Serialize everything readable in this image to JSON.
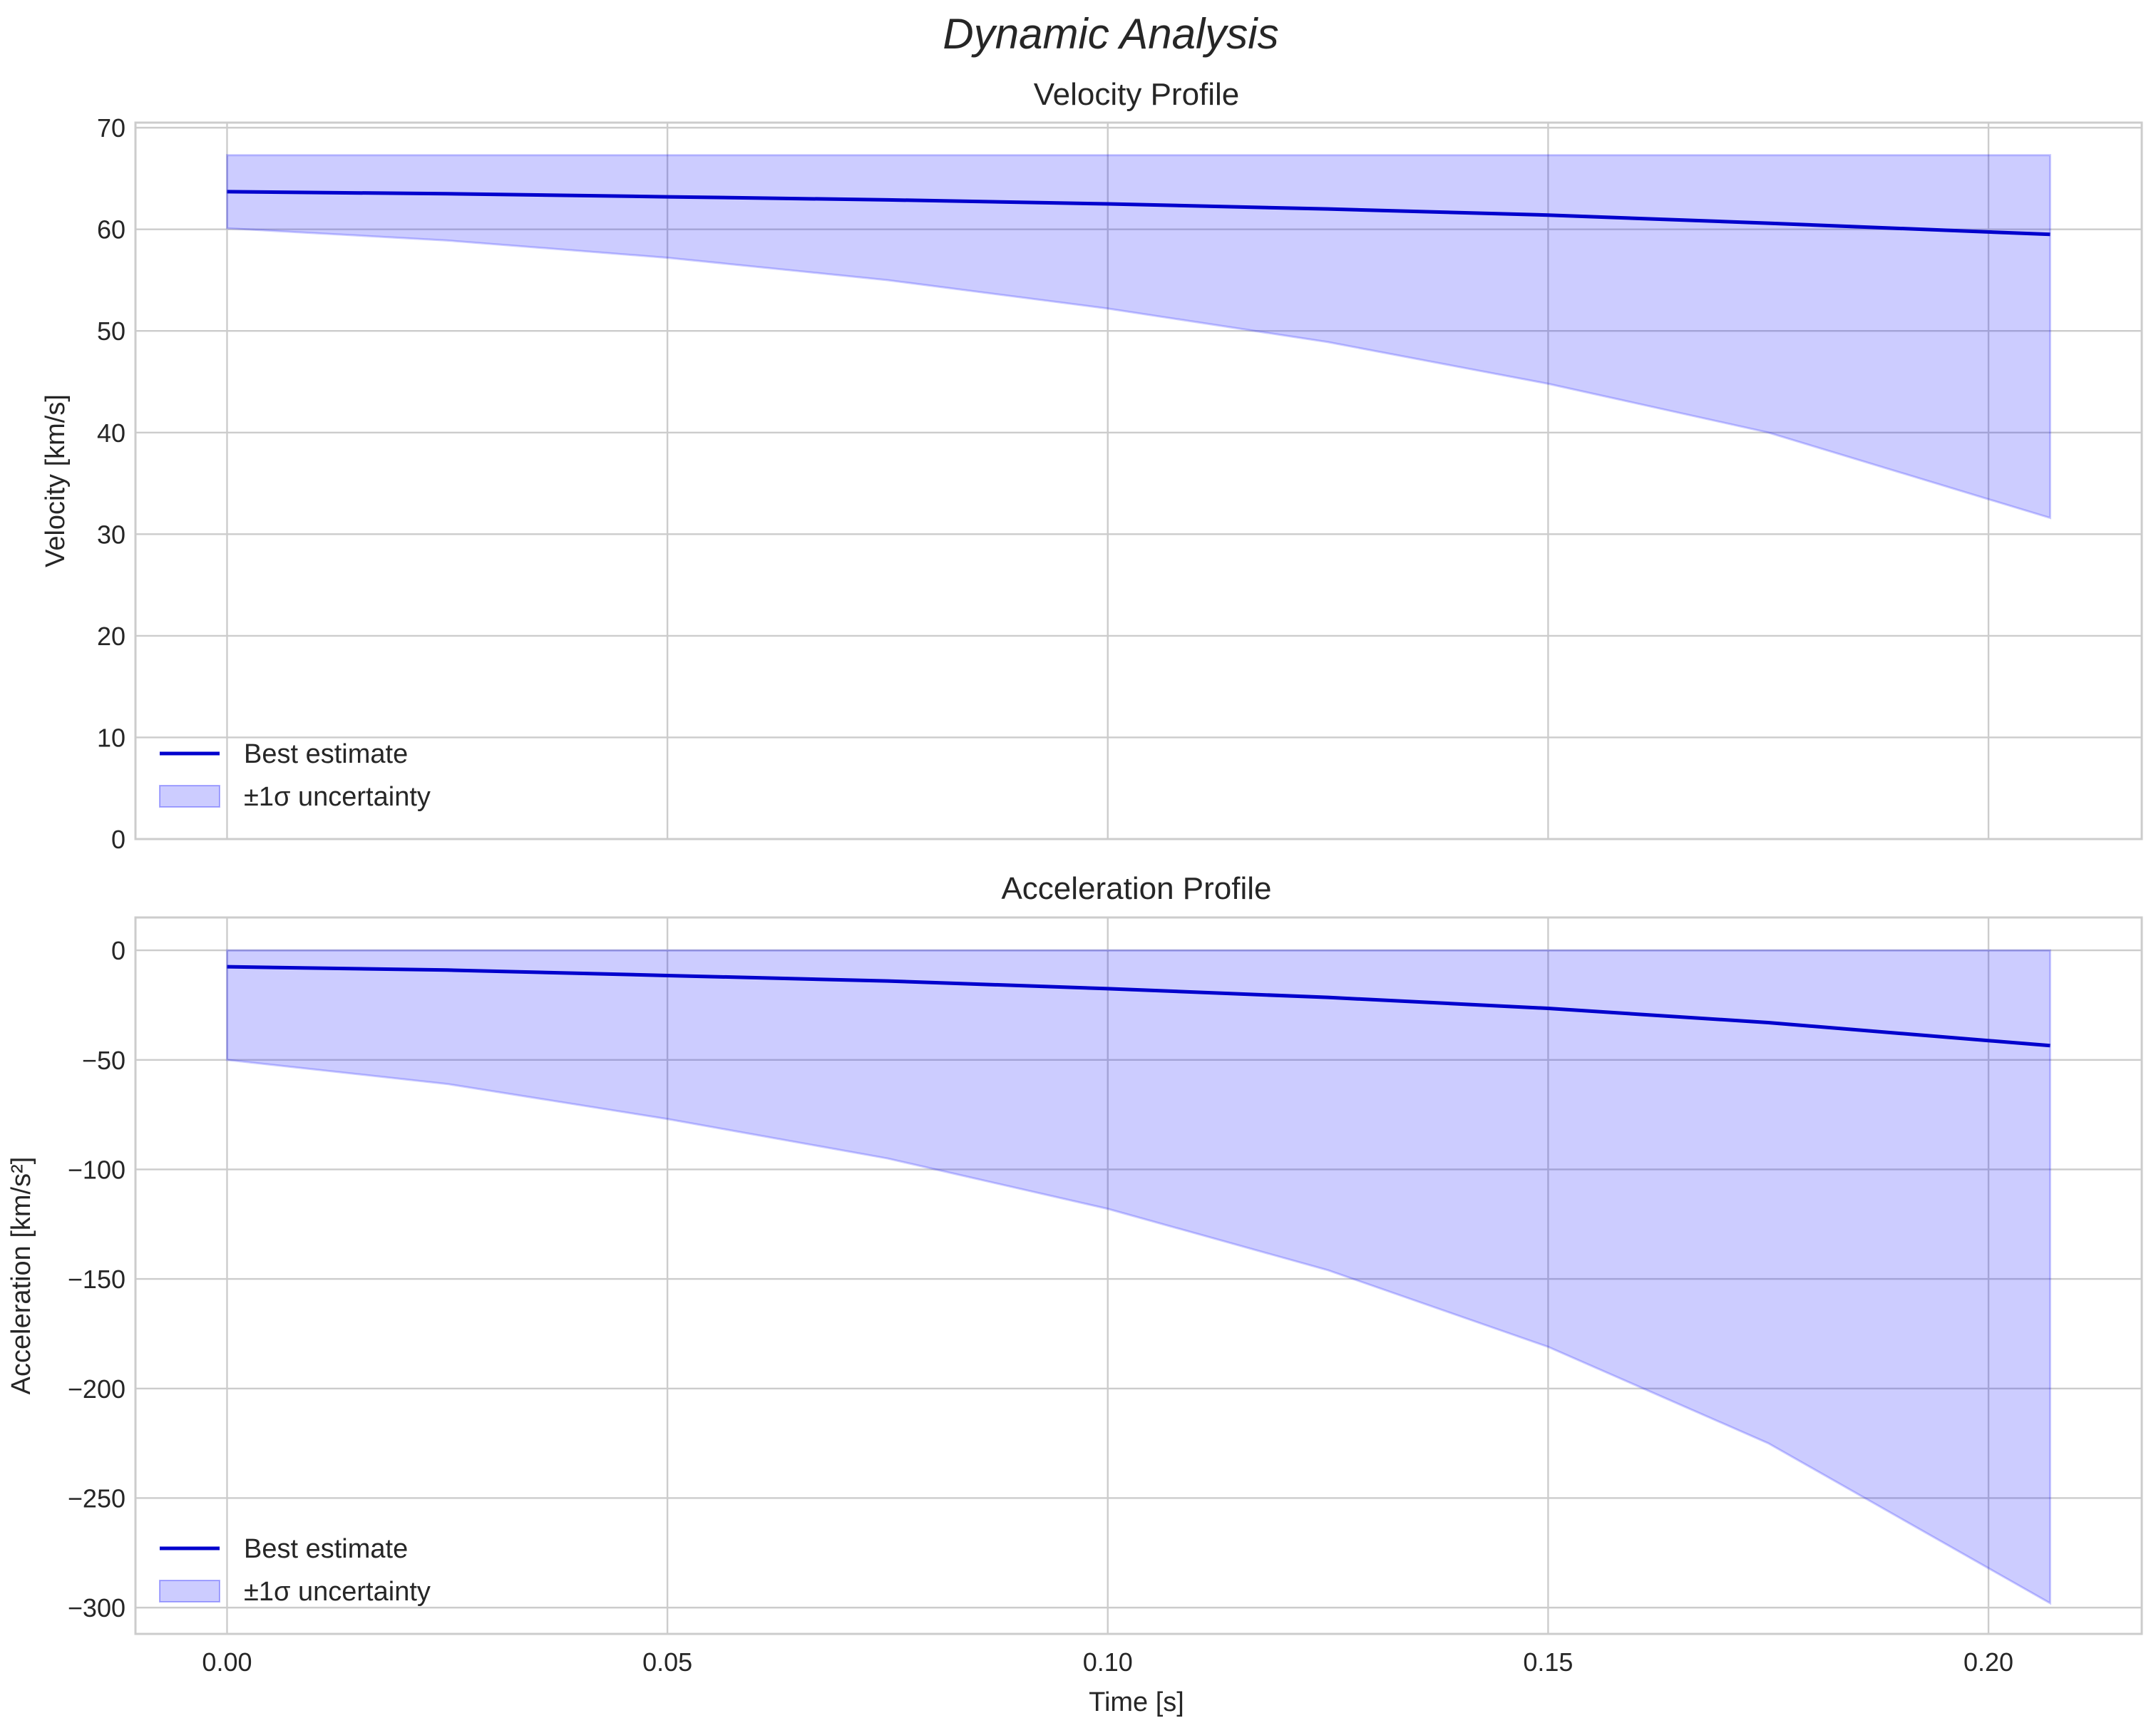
{
  "figure": {
    "suptitle": "Dynamic Analysis"
  },
  "chart_data": [
    {
      "type": "line",
      "title": "Velocity Profile",
      "xlabel": "",
      "ylabel": "Velocity [km/s]",
      "xlim": [
        -0.0104,
        0.2174
      ],
      "ylim": [
        0,
        70.5
      ],
      "xticks": [
        0.0,
        0.05,
        0.1,
        0.15,
        0.2
      ],
      "xtick_labels": [
        "0.00",
        "0.05",
        "0.10",
        "0.15",
        "0.20"
      ],
      "show_xtick_labels": false,
      "yticks": [
        0,
        10,
        20,
        30,
        40,
        50,
        60,
        70
      ],
      "ytick_labels": [
        "0",
        "10",
        "20",
        "30",
        "40",
        "50",
        "60",
        "70"
      ],
      "grid": true,
      "legend_location": "lower-left",
      "legend": [
        "Best estimate",
        "±1σ uncertainty"
      ],
      "series": [
        {
          "name": "Best estimate",
          "x": [
            0.0,
            0.025,
            0.05,
            0.075,
            0.1,
            0.125,
            0.15,
            0.175,
            0.207
          ],
          "values": [
            63.7,
            63.5,
            63.2,
            62.9,
            62.5,
            62.0,
            61.4,
            60.6,
            59.5
          ]
        }
      ],
      "band": {
        "name": "±1σ uncertainty",
        "x": [
          0.0,
          0.025,
          0.05,
          0.075,
          0.1,
          0.125,
          0.15,
          0.175,
          0.207
        ],
        "upper": [
          67.3,
          67.3,
          67.3,
          67.3,
          67.3,
          67.3,
          67.3,
          67.3,
          67.3
        ],
        "lower": [
          60.1,
          58.9,
          57.2,
          55.0,
          52.2,
          48.9,
          44.8,
          40.0,
          31.6
        ]
      }
    },
    {
      "type": "line",
      "title": "Acceleration Profile",
      "xlabel": "Time [s]",
      "ylabel": "Acceleration [km/s²]",
      "xlim": [
        -0.0104,
        0.2174
      ],
      "ylim": [
        -312,
        15
      ],
      "xticks": [
        0.0,
        0.05,
        0.1,
        0.15,
        0.2
      ],
      "xtick_labels": [
        "0.00",
        "0.05",
        "0.10",
        "0.15",
        "0.20"
      ],
      "show_xtick_labels": true,
      "yticks": [
        0,
        -50,
        -100,
        -150,
        -200,
        -250,
        -300
      ],
      "ytick_labels": [
        "0",
        "−50",
        "−100",
        "−150",
        "−200",
        "−250",
        "−300"
      ],
      "grid": true,
      "legend_location": "lower-left",
      "legend": [
        "Best estimate",
        "±1σ uncertainty"
      ],
      "series": [
        {
          "name": "Best estimate",
          "x": [
            0.0,
            0.025,
            0.05,
            0.075,
            0.1,
            0.125,
            0.15,
            0.175,
            0.207
          ],
          "values": [
            -7.5,
            -9.0,
            -11.5,
            -14.0,
            -17.5,
            -21.5,
            -26.5,
            -33.0,
            -43.5
          ]
        }
      ],
      "band": {
        "name": "±1σ uncertainty",
        "x": [
          0.0,
          0.025,
          0.05,
          0.075,
          0.1,
          0.125,
          0.15,
          0.175,
          0.207
        ],
        "upper": [
          0,
          0,
          0,
          0,
          0,
          0,
          0,
          0,
          0
        ],
        "lower": [
          -50,
          -61,
          -77,
          -95,
          -118,
          -146,
          -181,
          -225,
          -298
        ]
      }
    }
  ]
}
